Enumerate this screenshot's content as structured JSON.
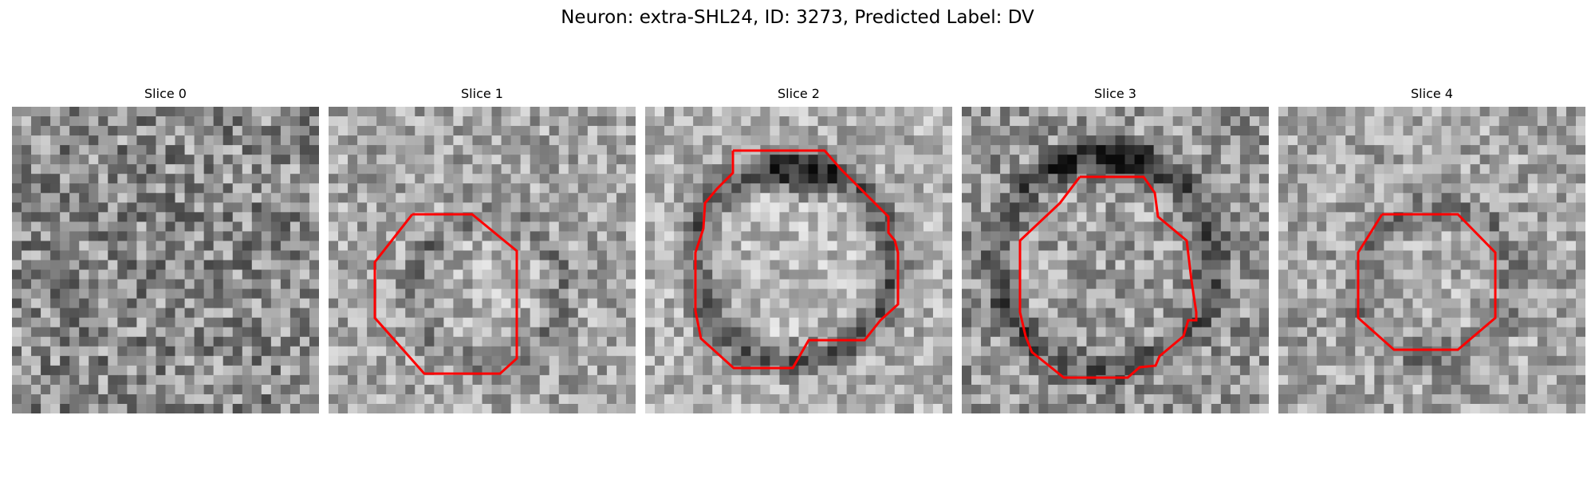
{
  "figure": {
    "title": "Neuron: extra-SHL24, ID: 3273, Predicted Label: DV"
  },
  "panels": [
    {
      "label": "Slice 0",
      "roi": false,
      "contrast": "low"
    },
    {
      "label": "Slice 1",
      "roi": true,
      "contrast": "medium"
    },
    {
      "label": "Slice 2",
      "roi": true,
      "contrast": "high"
    },
    {
      "label": "Slice 3",
      "roi": true,
      "contrast": "high"
    },
    {
      "label": "Slice 4",
      "roi": true,
      "contrast": "medium"
    }
  ],
  "colors": {
    "roi_outline": "#ff0000",
    "background": "#ffffff"
  }
}
